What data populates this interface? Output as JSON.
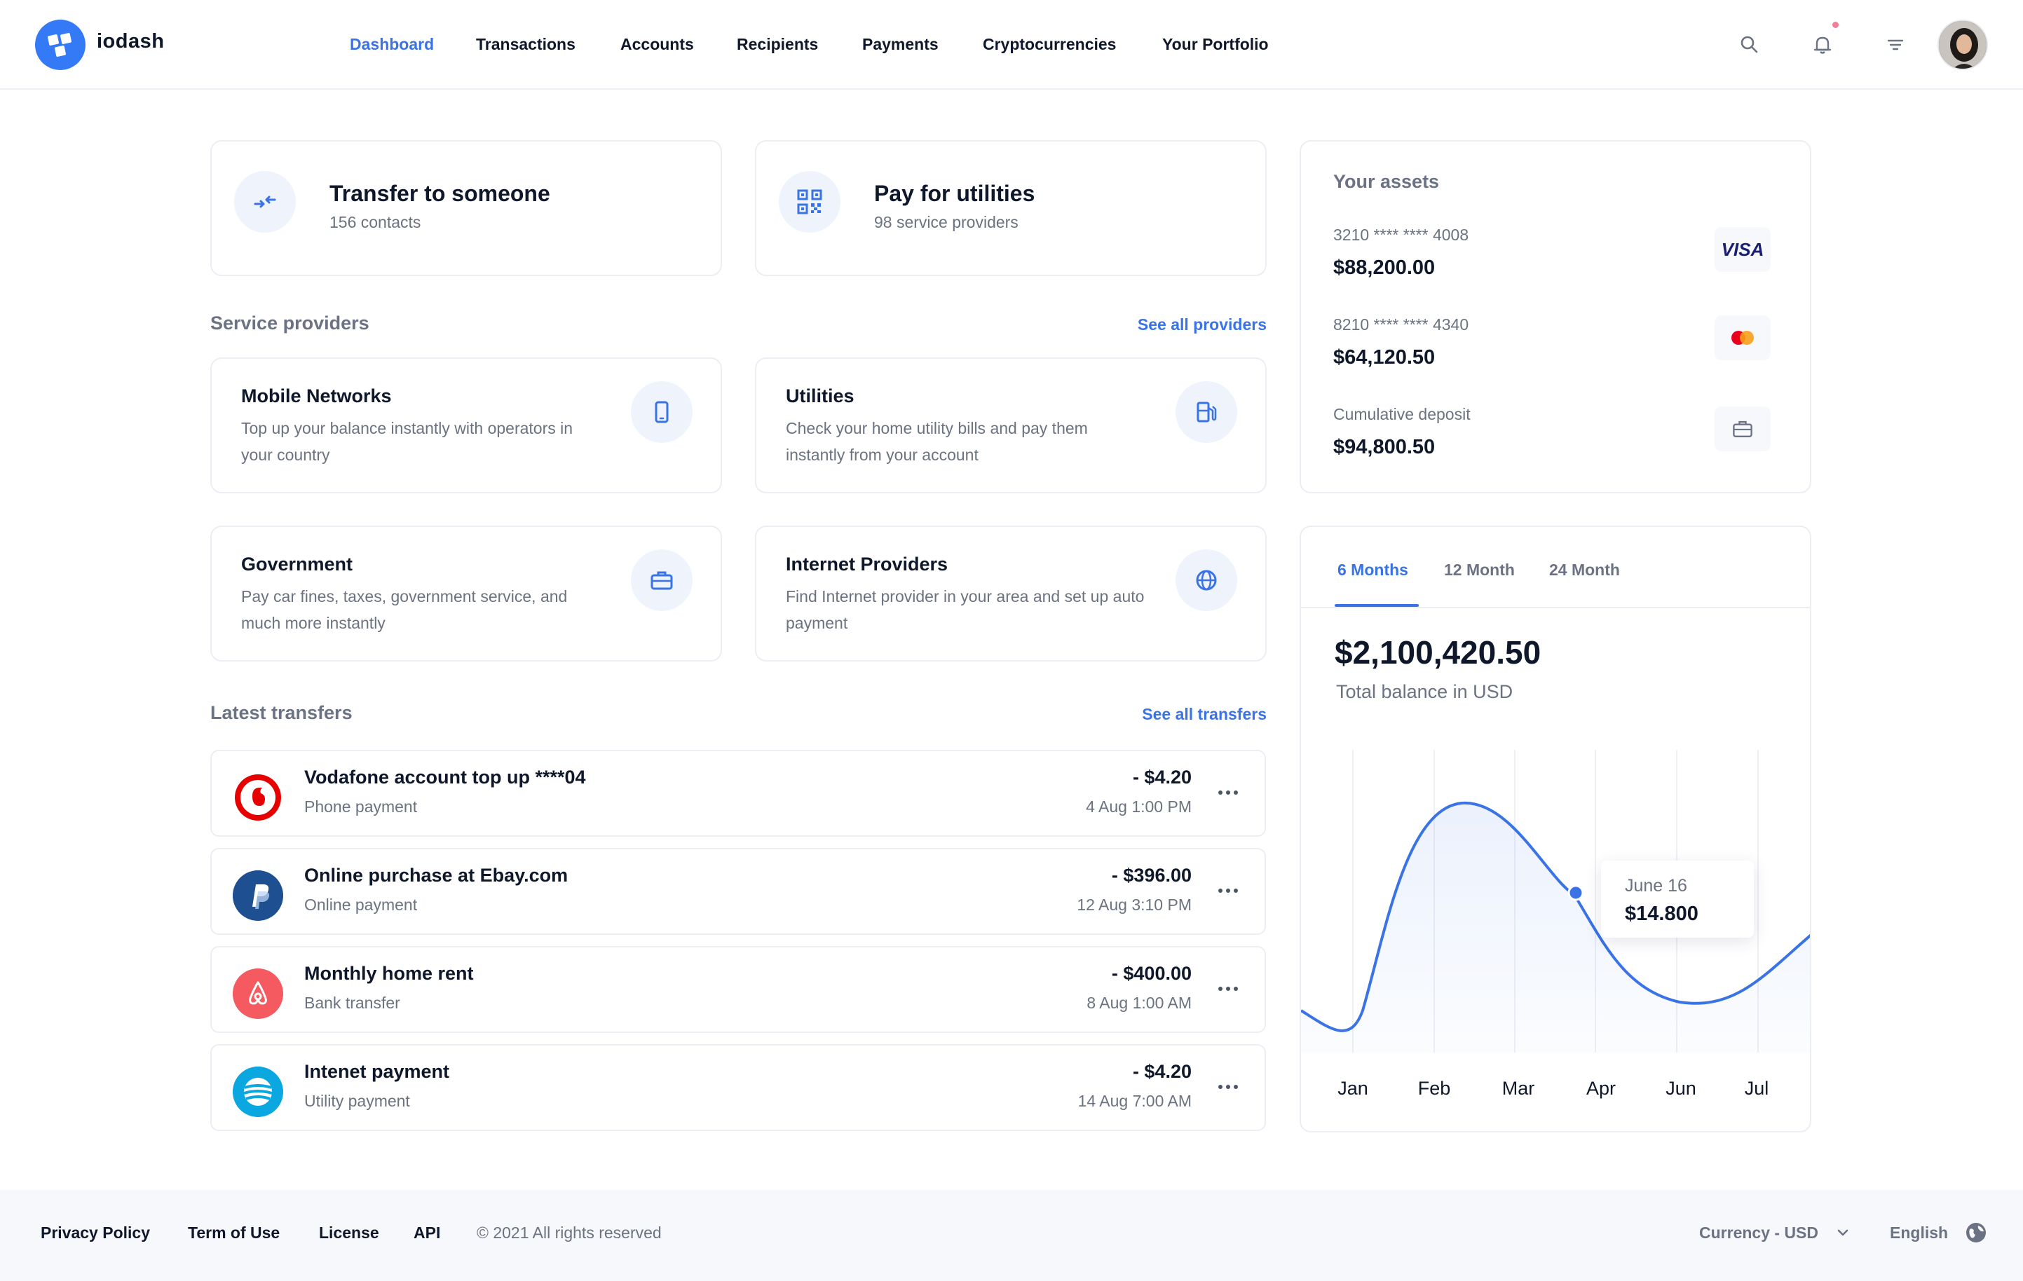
{
  "brand": {
    "name": "iodash",
    "accent": "#3479f6"
  },
  "nav": {
    "items": [
      {
        "label": "Dashboard",
        "active": true
      },
      {
        "label": "Transactions"
      },
      {
        "label": "Accounts"
      },
      {
        "label": "Recipients"
      },
      {
        "label": "Payments"
      },
      {
        "label": "Cryptocurrencies"
      },
      {
        "label": "Your Portfolio"
      }
    ],
    "icons": [
      "search-icon",
      "bell-icon",
      "filter-icon"
    ],
    "notification_dot_color": "#f47d98"
  },
  "quick_actions": [
    {
      "title": "Transfer to someone",
      "subtitle": "156 contacts",
      "icon": "transfer-arrows-icon"
    },
    {
      "title": "Pay for utilities",
      "subtitle": "98 service providers",
      "icon": "qr-code-icon"
    }
  ],
  "service_providers": {
    "label": "Service providers",
    "link": "See all providers",
    "items": [
      {
        "title": "Mobile Networks",
        "desc": "Top up your balance instantly with operators in your country",
        "icon": "phone-icon"
      },
      {
        "title": "Utilities",
        "desc": "Check your home utility bills and pay them instantly from your account",
        "icon": "fuel-station-icon"
      },
      {
        "title": "Government",
        "desc": "Pay car fines, taxes, government service, and much more instantly",
        "icon": "briefcase-icon"
      },
      {
        "title": "Internet Providers",
        "desc": "Find Internet provider in your area and set up auto payment",
        "icon": "globe-icon"
      }
    ]
  },
  "transfers": {
    "label": "Latest transfers",
    "link": "See all transfers",
    "items": [
      {
        "title": "Vodafone account top up  ****04",
        "sub": "Phone payment",
        "amount": "- $4.20",
        "date": "4 Aug 1:00 PM",
        "logo": "vodafone-logo"
      },
      {
        "title": "Online purchase at Ebay.com",
        "sub": "Online payment",
        "amount": "- $396.00",
        "date": "12 Aug 3:10 PM",
        "logo": "paypal-logo"
      },
      {
        "title": "Monthly home rent",
        "sub": "Bank transfer",
        "amount": "- $400.00",
        "date": "8 Aug 1:00 AM",
        "logo": "airbnb-logo"
      },
      {
        "title": "Intenet payment",
        "sub": "Utility payment",
        "amount": "- $4.20",
        "date": "14 Aug 7:00 AM",
        "logo": "att-logo"
      }
    ]
  },
  "assets": {
    "label": "Your assets",
    "items": [
      {
        "label": "3210 **** **** 4008",
        "value": "$88,200.00",
        "badge": "VISA"
      },
      {
        "label": "8210 **** **** 4340",
        "value": "$64,120.50",
        "badge": "mastercard-icon"
      },
      {
        "label": "Cumulative deposit",
        "value": "$94,800.50",
        "badge": "briefcase-icon"
      }
    ]
  },
  "balance": {
    "tabs": [
      {
        "label": "6 Months",
        "active": true
      },
      {
        "label": "12 Month"
      },
      {
        "label": "24 Month"
      }
    ],
    "total": "$2,100,420.50",
    "total_sub": "Total balance in USD",
    "tooltip": {
      "date": "June 16",
      "value": "$14.800"
    },
    "months": [
      "Jan",
      "Feb",
      "Mar",
      "Apr",
      "Jun",
      "Jul"
    ],
    "line_color": "#3a73e6"
  },
  "footer": {
    "links": [
      "Privacy Policy",
      "Term of Use",
      "License",
      "API"
    ],
    "copyright": "© 2021 All rights reserved",
    "currency": "Currency - USD",
    "language": "English"
  }
}
